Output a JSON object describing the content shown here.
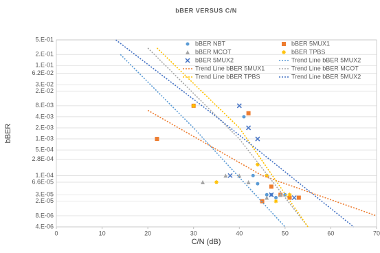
{
  "chart_data": {
    "type": "scatter",
    "title": "bBER VERSUS C/N",
    "x_label": "C/N (dB)",
    "y_label": "bBER",
    "xlim": [
      0,
      70
    ],
    "xticks": [
      0,
      10,
      20,
      30,
      40,
      50,
      60,
      70
    ],
    "ylim": [
      4e-06,
      0.5
    ],
    "y_log": true,
    "grid": true,
    "legend": "top-right",
    "yticks": [
      {
        "value": 0.5,
        "label": "5.E-01"
      },
      {
        "value": 0.2,
        "label": "2.E-01"
      },
      {
        "value": 0.1,
        "label": "1.E-01"
      },
      {
        "value": 0.062,
        "label": "6.2E-02"
      },
      {
        "value": 0.03,
        "label": "3.E-02"
      },
      {
        "value": 0.02,
        "label": "2.E-02"
      },
      {
        "value": 0.008,
        "label": "8.E-03"
      },
      {
        "value": 0.004,
        "label": "4.E-03"
      },
      {
        "value": 0.002,
        "label": "2.E-03"
      },
      {
        "value": 0.001,
        "label": "1.E-03"
      },
      {
        "value": 0.0005,
        "label": "5.E-04"
      },
      {
        "value": 0.00028,
        "label": "2.8E-04"
      },
      {
        "value": 0.0001,
        "label": "1.E-04"
      },
      {
        "value": 6.6e-05,
        "label": "6.6E-05"
      },
      {
        "value": 3e-05,
        "label": "3.E-05"
      },
      {
        "value": 2e-05,
        "label": "2.E-05"
      },
      {
        "value": 8e-06,
        "label": "8.E-06"
      },
      {
        "value": 4e-06,
        "label": "4.E-06"
      }
    ],
    "series": [
      {
        "name": "bBER NBT",
        "color": "#5b9bd5",
        "marker": "circle",
        "x": [
          41,
          43,
          44,
          46,
          47,
          48,
          50
        ],
        "values": [
          0.004,
          0.0001,
          6e-05,
          3e-05,
          3e-05,
          2.5e-05,
          3e-05
        ]
      },
      {
        "name": "bBER 5MUX1",
        "color": "#ed7d31",
        "marker": "square",
        "x": [
          22,
          30,
          42,
          45,
          47,
          49,
          51,
          53
        ],
        "values": [
          0.001,
          0.008,
          0.005,
          2e-05,
          5e-05,
          3e-05,
          2.5e-05,
          2.5e-05
        ]
      },
      {
        "name": "bBER MCOT",
        "color": "#a5a5a5",
        "marker": "triangle",
        "x": [
          32,
          37,
          40,
          42,
          46,
          49
        ],
        "values": [
          6.6e-05,
          0.0001,
          0.0001,
          6.6e-05,
          2.5e-05,
          3e-05
        ]
      },
      {
        "name": "bBER TPBS",
        "color": "#ffc000",
        "marker": "star",
        "x": [
          30,
          35,
          44,
          46,
          48,
          51
        ],
        "values": [
          0.008,
          6.6e-05,
          0.0002,
          0.0001,
          2e-05,
          3e-05
        ]
      },
      {
        "name": "bBER 5MUX2",
        "color": "#4472c4",
        "marker": "cross",
        "x": [
          38,
          40,
          42,
          44,
          47,
          52
        ],
        "values": [
          0.0001,
          0.008,
          0.002,
          0.001,
          3e-05,
          2.5e-05
        ]
      },
      {
        "name": "Trend Line bBER 5MUX2",
        "color": "#5b9bd5",
        "marker": "line",
        "x": [
          14,
          30,
          50
        ],
        "values": [
          0.2,
          0.002,
          4e-06
        ]
      },
      {
        "name": "Trend Line  bBER 5MUX1",
        "color": "#ed7d31",
        "marker": "line",
        "x": [
          20,
          45,
          70
        ],
        "values": [
          0.006,
          0.0001,
          8e-06
        ]
      },
      {
        "name": "Trend Line bBER MCOT",
        "color": "#a5a5a5",
        "marker": "line",
        "x": [
          20,
          40,
          55
        ],
        "values": [
          0.3,
          0.001,
          4e-06
        ]
      },
      {
        "name": "Trend Line bBER TPBS",
        "color": "#ffc000",
        "marker": "line",
        "x": [
          22,
          40,
          55
        ],
        "values": [
          0.3,
          0.002,
          4e-06
        ]
      },
      {
        "name": "Trend Line bBER 5MUX2",
        "color": "#4472c4",
        "marker": "line",
        "x": [
          13,
          35,
          65
        ],
        "values": [
          0.5,
          0.004,
          4e-06
        ]
      }
    ]
  }
}
